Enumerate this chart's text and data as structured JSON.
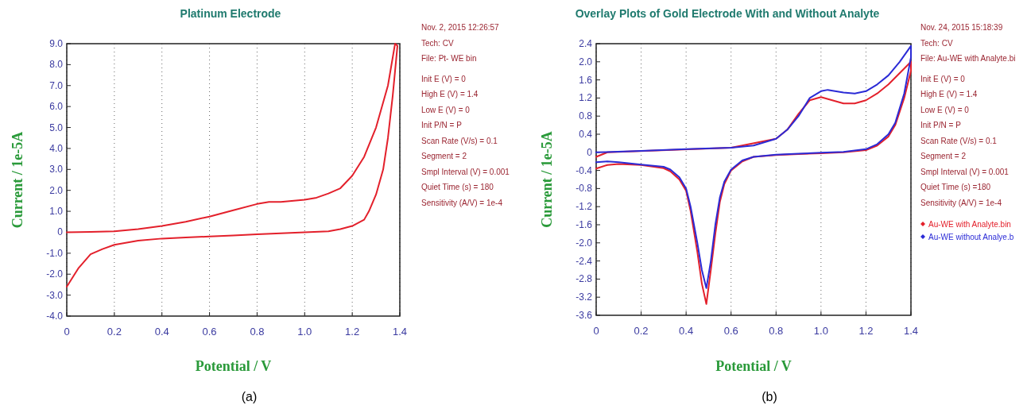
{
  "chart_data": [
    {
      "type": "line",
      "title": "Platinum Electrode",
      "xlabel": "Potential / V",
      "ylabel": "Current / 1e-5A",
      "xlim": [
        0,
        1.4
      ],
      "ylim": [
        -4,
        9
      ],
      "xticks": [
        0,
        {
          "value": 0.2,
          "label": "0.2"
        },
        {
          "value": 0.4,
          "label": "0.4"
        },
        {
          "value": 0.6,
          "label": "0.6"
        },
        {
          "value": 0.8,
          "label": "0.8"
        },
        {
          "value": 1,
          "label": "1.0"
        },
        {
          "value": 1.2,
          "label": "1.2"
        },
        {
          "value": 1.4,
          "label": "1.4"
        }
      ],
      "yticks": [
        {
          "value": 9,
          "label": "9.0"
        },
        {
          "value": 8,
          "label": "8.0"
        },
        {
          "value": 7,
          "label": "7.0"
        },
        {
          "value": 6,
          "label": "6.0"
        },
        {
          "value": 5,
          "label": "5.0"
        },
        {
          "value": 4,
          "label": "4.0"
        },
        {
          "value": 3,
          "label": "3.0"
        },
        {
          "value": 2,
          "label": "2.0"
        },
        {
          "value": 1,
          "label": "1.0"
        },
        0,
        {
          "value": -1,
          "label": "-1.0"
        },
        {
          "value": -2,
          "label": "-2.0"
        },
        {
          "value": -3,
          "label": "-3.0"
        },
        {
          "value": -4,
          "label": "-4.0"
        }
      ],
      "grid": "x",
      "legend": false,
      "marker": "none",
      "line_style": "solid",
      "series": [
        {
          "color": "#e3202b",
          "x": [
            0,
            0.1,
            0.2,
            0.3,
            0.4,
            0.5,
            0.6,
            0.7,
            0.8,
            0.85,
            0.9,
            1.0,
            1.05,
            1.1,
            1.15,
            1.2,
            1.25,
            1.3,
            1.35,
            1.38,
            1.39,
            1.37,
            1.35,
            1.33,
            1.3,
            1.27,
            1.25,
            1.2,
            1.15,
            1.1,
            1.0,
            0.9,
            0.8,
            0.7,
            0.6,
            0.5,
            0.4,
            0.3,
            0.2,
            0.15,
            0.1,
            0.05,
            0
          ],
          "values": [
            0,
            0.02,
            0.05,
            0.15,
            0.3,
            0.5,
            0.75,
            1.05,
            1.35,
            1.45,
            1.45,
            1.55,
            1.65,
            1.85,
            2.1,
            2.7,
            3.6,
            5.0,
            7.0,
            9.0,
            8.9,
            6.5,
            4.5,
            3.0,
            1.8,
            1.0,
            0.6,
            0.3,
            0.15,
            0.05,
            0,
            -0.05,
            -0.1,
            -0.15,
            -0.2,
            -0.25,
            -0.3,
            -0.4,
            -0.6,
            -0.8,
            -1.05,
            -1.7,
            -2.6
          ]
        }
      ],
      "annotations": [
        "Nov. 2, 2015   12:26:57",
        "Tech: CV",
        "File: Pt- WE bin",
        "Init E (V) = 0",
        "High E (V) = 1.4",
        "Low E (V) = 0",
        "Init P/N = P",
        "Scan Rate (V/s) = 0.1",
        "Segment = 2",
        "Smpl Interval (V) = 0.001",
        "Quiet Time (s) = 180",
        "Sensitivity (A/V) = 1e-4",
        "(a)"
      ]
    },
    {
      "type": "line",
      "title": "Overlay Plots of Gold Electrode With and Without Analyte",
      "xlabel": "Potential / V",
      "ylabel": "Current / 1e-5A",
      "xlim": [
        0,
        1.4
      ],
      "ylim": [
        -3.6,
        2.4
      ],
      "xticks": [
        0,
        {
          "value": 0.2,
          "label": "0.2"
        },
        {
          "value": 0.4,
          "label": "0.4"
        },
        {
          "value": 0.6,
          "label": "0.6"
        },
        {
          "value": 0.8,
          "label": "0.8"
        },
        {
          "value": 1,
          "label": "1.0"
        },
        {
          "value": 1.2,
          "label": "1.2"
        },
        {
          "value": 1.4,
          "label": "1.4"
        }
      ],
      "yticks": [
        {
          "value": 2.4,
          "label": "2.4"
        },
        {
          "value": 2,
          "label": "2.0"
        },
        {
          "value": 1.6,
          "label": "1.6"
        },
        {
          "value": 1.2,
          "label": "1.2"
        },
        {
          "value": 0.8,
          "label": "0.8"
        },
        {
          "value": 0.4,
          "label": "0.4"
        },
        0,
        {
          "value": -0.4,
          "label": "-0.4"
        },
        {
          "value": -0.8,
          "label": "-0.8"
        },
        {
          "value": -1.2,
          "label": "-1.2"
        },
        {
          "value": -1.6,
          "label": "-1.6"
        },
        {
          "value": -2,
          "label": "-2.0"
        },
        {
          "value": -2.4,
          "label": "-2.4"
        },
        {
          "value": -2.8,
          "label": "-2.8"
        },
        {
          "value": -3.2,
          "label": "-3.2"
        },
        {
          "value": -3.6,
          "label": "-3.6"
        }
      ],
      "grid": "x",
      "legend": "right",
      "marker": "none",
      "line_style": "solid",
      "series": [
        {
          "name": "Au-WE with Analyte.bin",
          "color": "#e3202b",
          "x": [
            0,
            0.05,
            0.6,
            0.8,
            0.85,
            0.9,
            0.95,
            1.0,
            1.05,
            1.1,
            1.15,
            1.2,
            1.25,
            1.3,
            1.35,
            1.4,
            1.4,
            1.37,
            1.33,
            1.3,
            1.25,
            1.2,
            1.1,
            1.0,
            0.9,
            0.8,
            0.7,
            0.65,
            0.6,
            0.57,
            0.55,
            0.53,
            0.51,
            0.49,
            0.47,
            0.45,
            0.42,
            0.4,
            0.37,
            0.33,
            0.3,
            0.2,
            0.1,
            0.05,
            0
          ],
          "values": [
            -0.1,
            0,
            0.1,
            0.3,
            0.5,
            0.85,
            1.15,
            1.22,
            1.15,
            1.08,
            1.08,
            1.15,
            1.3,
            1.5,
            1.75,
            2.0,
            1.8,
            1.2,
            0.6,
            0.35,
            0.15,
            0.05,
            0,
            -0.02,
            -0.04,
            -0.06,
            -0.1,
            -0.2,
            -0.4,
            -0.7,
            -1.1,
            -1.8,
            -2.6,
            -3.35,
            -2.9,
            -2.2,
            -1.3,
            -0.85,
            -0.6,
            -0.42,
            -0.35,
            -0.28,
            -0.26,
            -0.28,
            -0.36
          ]
        },
        {
          "name": "Au-WE without Analye.b",
          "color": "#2b2bd6",
          "x": [
            0,
            0.2,
            0.4,
            0.6,
            0.7,
            0.8,
            0.85,
            0.9,
            0.95,
            1.0,
            1.03,
            1.1,
            1.15,
            1.2,
            1.25,
            1.3,
            1.35,
            1.4,
            1.4,
            1.37,
            1.33,
            1.3,
            1.25,
            1.2,
            1.1,
            1.0,
            0.9,
            0.8,
            0.7,
            0.65,
            0.6,
            0.57,
            0.55,
            0.53,
            0.51,
            0.49,
            0.47,
            0.45,
            0.42,
            0.4,
            0.37,
            0.33,
            0.3,
            0.2,
            0.1,
            0.05,
            0
          ],
          "values": [
            0,
            0.03,
            0.07,
            0.1,
            0.15,
            0.3,
            0.5,
            0.8,
            1.2,
            1.35,
            1.38,
            1.32,
            1.3,
            1.35,
            1.5,
            1.7,
            2.0,
            2.35,
            2.1,
            1.3,
            0.65,
            0.4,
            0.18,
            0.07,
            0.01,
            -0.01,
            -0.03,
            -0.05,
            -0.1,
            -0.18,
            -0.38,
            -0.65,
            -1.0,
            -1.6,
            -2.4,
            -3.0,
            -2.6,
            -2.0,
            -1.2,
            -0.8,
            -0.55,
            -0.38,
            -0.32,
            -0.27,
            -0.22,
            -0.2,
            -0.22
          ]
        }
      ],
      "annotations": [
        "Nov. 24, 2015   15:18:39",
        "Tech: CV",
        "File: Au-WE with Analyte.bi",
        "Init E (V) = 0",
        "High E (V) = 1.4",
        "Low E (V) = 0",
        "Init P/N = P",
        "Scan Rate (V/s) = 0.1",
        "Segment = 2",
        "Smpl Interval (V) = 0.001",
        "Quiet Time (s) =180",
        "Sensitivity (A/V) = 1e-4",
        "(b)"
      ]
    }
  ]
}
